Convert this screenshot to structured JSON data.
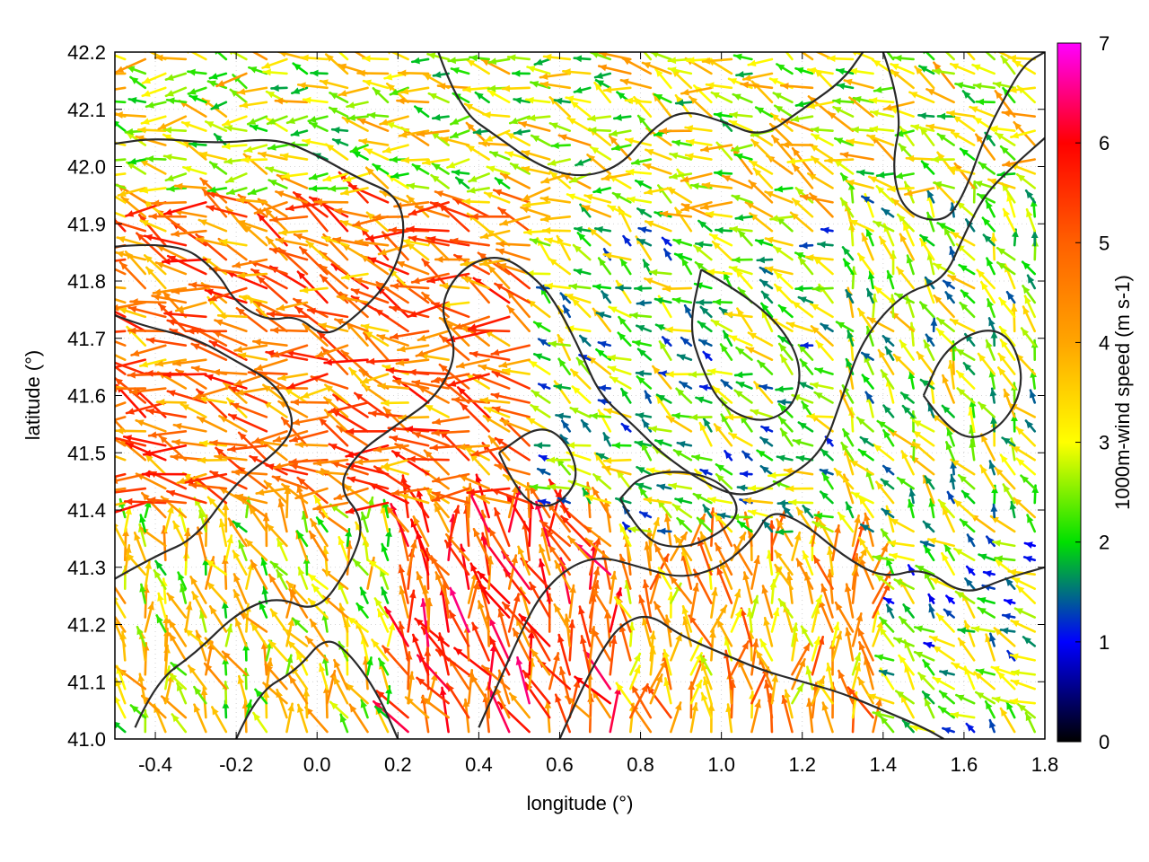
{
  "chart_data": {
    "type": "vector-field",
    "title": "",
    "xlabel": "longitude (°)",
    "ylabel": "latitude (°)",
    "xlim": [
      -0.5,
      1.8
    ],
    "ylim": [
      41.0,
      42.2
    ],
    "xticks": [
      -0.4,
      -0.2,
      0.0,
      0.2,
      0.4,
      0.6,
      0.8,
      1.0,
      1.2,
      1.4,
      1.6,
      1.8
    ],
    "xtick_labels": [
      "-0.4",
      "-0.2",
      "0.0",
      "0.2",
      "0.4",
      "0.6",
      "0.8",
      "1.0",
      "1.2",
      "1.4",
      "1.6",
      "1.8"
    ],
    "yticks": [
      41.0,
      41.1,
      41.2,
      41.3,
      41.4,
      41.5,
      41.6,
      41.7,
      41.8,
      41.9,
      42.0,
      42.1,
      42.2
    ],
    "ytick_labels": [
      "41.0",
      "41.1",
      "41.2",
      "41.3",
      "41.4",
      "41.5",
      "41.6",
      "41.7",
      "41.8",
      "41.9",
      "42.0",
      "42.1",
      "42.2"
    ],
    "grid": true,
    "colorbar": {
      "label": "1000m-wind speed (m s-1)",
      "range": [
        0,
        7
      ],
      "ticks": [
        0,
        1,
        2,
        3,
        4,
        5,
        6,
        7
      ],
      "tick_labels": [
        "0",
        "1",
        "2",
        "3",
        "4",
        "5",
        "6",
        "7"
      ],
      "stops": [
        {
          "value": 0,
          "color": "#000000"
        },
        {
          "value": 1,
          "color": "#0000ff"
        },
        {
          "value": 2,
          "color": "#00e000"
        },
        {
          "value": 3,
          "color": "#ffff00"
        },
        {
          "value": 4,
          "color": "#ffa500"
        },
        {
          "value": 5,
          "color": "#ff6000"
        },
        {
          "value": 6,
          "color": "#ff0000"
        },
        {
          "value": 7,
          "color": "#ff00ff"
        }
      ]
    },
    "vector_field": {
      "lon_step": 0.05,
      "lat_step": 0.025,
      "regions": [
        {
          "name": "west-strong-westward",
          "lon": [
            -0.5,
            0.55
          ],
          "lat": [
            41.4,
            41.95
          ],
          "speed": 4.6,
          "direction_deg": 165
        },
        {
          "name": "northwest-westward",
          "lon": [
            -0.5,
            0.7
          ],
          "lat": [
            41.95,
            42.2
          ],
          "speed": 3.0,
          "direction_deg": 170
        },
        {
          "name": "southwest-northward",
          "lon": [
            -0.5,
            0.2
          ],
          "lat": [
            41.0,
            41.4
          ],
          "speed": 3.2,
          "direction_deg": 110
        },
        {
          "name": "south-central-strong",
          "lon": [
            0.2,
            0.75
          ],
          "lat": [
            41.0,
            41.4
          ],
          "speed": 5.2,
          "direction_deg": 110
        },
        {
          "name": "central-weak",
          "lon": [
            0.55,
            1.3
          ],
          "lat": [
            41.35,
            41.9
          ],
          "speed": 2.4,
          "direction_deg": 150
        },
        {
          "name": "southeast-northward",
          "lon": [
            0.75,
            1.4
          ],
          "lat": [
            41.0,
            41.35
          ],
          "speed": 4.0,
          "direction_deg": 95
        },
        {
          "name": "east-northwest",
          "lon": [
            1.3,
            1.8
          ],
          "lat": [
            41.0,
            41.35
          ],
          "speed": 2.2,
          "direction_deg": 140
        },
        {
          "name": "east-mixed",
          "lon": [
            1.3,
            1.8
          ],
          "lat": [
            41.35,
            41.95
          ],
          "speed": 2.6,
          "direction_deg": 120
        },
        {
          "name": "northeast",
          "lon": [
            0.7,
            1.8
          ],
          "lat": [
            41.9,
            42.2
          ],
          "speed": 3.0,
          "direction_deg": 160
        }
      ]
    },
    "contours": [
      {
        "name": "contour-1",
        "points": [
          [
            -0.5,
            41.28
          ],
          [
            -0.4,
            41.32
          ],
          [
            -0.3,
            41.35
          ],
          [
            -0.2,
            41.45
          ],
          [
            -0.1,
            41.5
          ],
          [
            -0.05,
            41.55
          ],
          [
            -0.1,
            41.62
          ],
          [
            -0.2,
            41.66
          ],
          [
            -0.3,
            41.7
          ],
          [
            -0.42,
            41.72
          ],
          [
            -0.5,
            41.74
          ]
        ]
      },
      {
        "name": "contour-2",
        "points": [
          [
            -0.5,
            41.86
          ],
          [
            -0.35,
            41.87
          ],
          [
            -0.25,
            41.82
          ],
          [
            -0.2,
            41.76
          ],
          [
            -0.12,
            41.73
          ],
          [
            -0.05,
            41.74
          ],
          [
            0.02,
            41.7
          ],
          [
            0.1,
            41.74
          ],
          [
            0.18,
            41.8
          ],
          [
            0.22,
            41.88
          ],
          [
            0.2,
            41.95
          ],
          [
            0.1,
            41.98
          ],
          [
            0.0,
            42.02
          ],
          [
            -0.1,
            42.05
          ],
          [
            -0.25,
            42.04
          ],
          [
            -0.4,
            42.05
          ],
          [
            -0.5,
            42.04
          ]
        ]
      },
      {
        "name": "contour-3",
        "points": [
          [
            -0.45,
            41.02
          ],
          [
            -0.4,
            41.1
          ],
          [
            -0.3,
            41.15
          ],
          [
            -0.2,
            41.22
          ],
          [
            -0.1,
            41.25
          ],
          [
            0.0,
            41.22
          ],
          [
            0.08,
            41.3
          ],
          [
            0.12,
            41.38
          ],
          [
            0.05,
            41.44
          ],
          [
            0.1,
            41.5
          ],
          [
            0.2,
            41.55
          ],
          [
            0.3,
            41.6
          ],
          [
            0.35,
            41.68
          ],
          [
            0.3,
            41.75
          ],
          [
            0.35,
            41.82
          ],
          [
            0.45,
            41.85
          ],
          [
            0.55,
            41.8
          ],
          [
            0.6,
            41.75
          ],
          [
            0.65,
            41.68
          ],
          [
            0.7,
            41.6
          ],
          [
            0.78,
            41.55
          ],
          [
            0.85,
            41.5
          ],
          [
            0.95,
            41.45
          ],
          [
            1.05,
            41.42
          ],
          [
            1.15,
            41.45
          ],
          [
            1.25,
            41.5
          ],
          [
            1.3,
            41.6
          ],
          [
            1.35,
            41.7
          ],
          [
            1.45,
            41.78
          ],
          [
            1.55,
            41.8
          ],
          [
            1.6,
            41.88
          ],
          [
            1.65,
            41.95
          ],
          [
            1.72,
            42.0
          ],
          [
            1.8,
            42.05
          ]
        ]
      },
      {
        "name": "contour-4",
        "points": [
          [
            0.4,
            41.02
          ],
          [
            0.45,
            41.1
          ],
          [
            0.5,
            41.18
          ],
          [
            0.55,
            41.25
          ],
          [
            0.62,
            41.3
          ],
          [
            0.7,
            41.32
          ],
          [
            0.8,
            41.3
          ],
          [
            0.9,
            41.28
          ],
          [
            1.0,
            41.3
          ],
          [
            1.08,
            41.35
          ],
          [
            1.12,
            41.4
          ],
          [
            1.2,
            41.38
          ],
          [
            1.3,
            41.32
          ],
          [
            1.4,
            41.28
          ],
          [
            1.5,
            41.3
          ],
          [
            1.6,
            41.25
          ],
          [
            1.7,
            41.28
          ],
          [
            1.8,
            41.3
          ]
        ]
      },
      {
        "name": "contour-5",
        "points": [
          [
            0.6,
            41.0
          ],
          [
            0.65,
            41.08
          ],
          [
            0.7,
            41.15
          ],
          [
            0.75,
            41.2
          ],
          [
            0.82,
            41.22
          ],
          [
            0.9,
            41.18
          ],
          [
            1.0,
            41.15
          ],
          [
            1.1,
            41.12
          ],
          [
            1.2,
            41.1
          ],
          [
            1.3,
            41.08
          ],
          [
            1.4,
            41.05
          ],
          [
            1.5,
            41.02
          ],
          [
            1.55,
            41.0
          ]
        ]
      },
      {
        "name": "contour-6",
        "points": [
          [
            0.3,
            42.2
          ],
          [
            0.35,
            42.1
          ],
          [
            0.45,
            42.05
          ],
          [
            0.55,
            42.0
          ],
          [
            0.65,
            41.98
          ],
          [
            0.75,
            42.0
          ],
          [
            0.82,
            42.06
          ],
          [
            0.9,
            42.1
          ],
          [
            1.0,
            42.08
          ],
          [
            1.1,
            42.05
          ],
          [
            1.2,
            42.1
          ],
          [
            1.3,
            42.15
          ],
          [
            1.35,
            42.2
          ]
        ]
      },
      {
        "name": "contour-7",
        "points": [
          [
            1.4,
            42.2
          ],
          [
            1.45,
            42.1
          ],
          [
            1.42,
            42.0
          ],
          [
            1.45,
            41.92
          ],
          [
            1.55,
            41.9
          ],
          [
            1.6,
            41.95
          ],
          [
            1.65,
            42.05
          ],
          [
            1.7,
            42.12
          ],
          [
            1.75,
            42.18
          ],
          [
            1.8,
            42.2
          ]
        ]
      },
      {
        "name": "contour-8",
        "points": [
          [
            -0.2,
            41.0
          ],
          [
            -0.15,
            41.08
          ],
          [
            -0.05,
            41.12
          ],
          [
            0.02,
            41.18
          ],
          [
            0.08,
            41.15
          ],
          [
            0.15,
            41.08
          ],
          [
            0.2,
            41.0
          ]
        ]
      },
      {
        "name": "contour-9",
        "points": [
          [
            0.75,
            41.42
          ],
          [
            0.8,
            41.35
          ],
          [
            0.9,
            41.33
          ],
          [
            1.0,
            41.36
          ],
          [
            1.05,
            41.4
          ],
          [
            1.0,
            41.45
          ],
          [
            0.9,
            41.47
          ],
          [
            0.8,
            41.46
          ],
          [
            0.75,
            41.42
          ]
        ]
      },
      {
        "name": "contour-10",
        "points": [
          [
            0.95,
            41.82
          ],
          [
            1.05,
            41.78
          ],
          [
            1.15,
            41.72
          ],
          [
            1.2,
            41.65
          ],
          [
            1.18,
            41.58
          ],
          [
            1.1,
            41.55
          ],
          [
            1.0,
            41.58
          ],
          [
            0.95,
            41.65
          ],
          [
            0.92,
            41.72
          ],
          [
            0.95,
            41.82
          ]
        ]
      },
      {
        "name": "contour-11",
        "points": [
          [
            1.5,
            41.6
          ],
          [
            1.55,
            41.55
          ],
          [
            1.62,
            41.52
          ],
          [
            1.7,
            41.55
          ],
          [
            1.75,
            41.62
          ],
          [
            1.72,
            41.7
          ],
          [
            1.65,
            41.72
          ],
          [
            1.55,
            41.68
          ],
          [
            1.5,
            41.6
          ]
        ]
      },
      {
        "name": "contour-12",
        "points": [
          [
            0.45,
            41.5
          ],
          [
            0.5,
            41.42
          ],
          [
            0.58,
            41.4
          ],
          [
            0.65,
            41.45
          ],
          [
            0.62,
            41.52
          ],
          [
            0.55,
            41.55
          ],
          [
            0.45,
            41.5
          ]
        ]
      }
    ]
  },
  "colors": {
    "contour": "#2a2a2a",
    "grid": "#c8c8c8",
    "frame": "#000000"
  }
}
